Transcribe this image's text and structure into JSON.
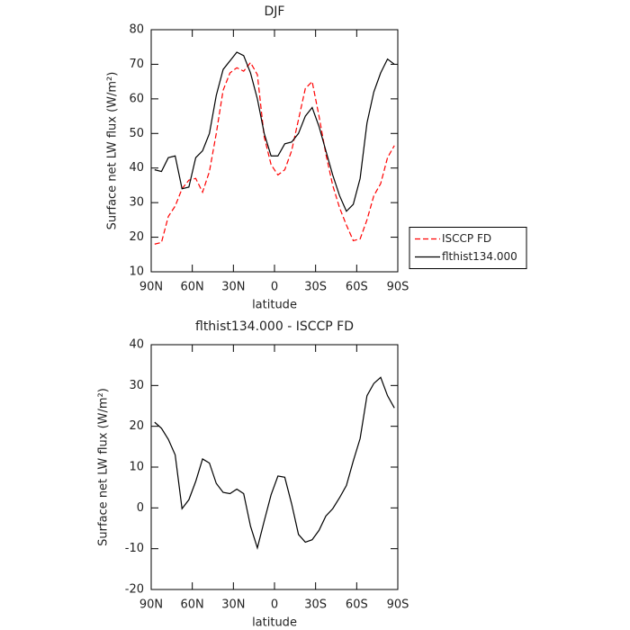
{
  "chart_data": [
    {
      "type": "line",
      "title": "DJF",
      "xlabel": "latitude",
      "ylabel": "Surface net LW flux (W/m²)",
      "x": [
        87.5,
        82.5,
        77.5,
        72.5,
        67.5,
        62.5,
        57.5,
        52.5,
        47.5,
        42.5,
        37.5,
        32.5,
        27.5,
        22.5,
        17.5,
        12.5,
        7.5,
        2.5,
        -2.5,
        -7.5,
        -12.5,
        -17.5,
        -22.5,
        -27.5,
        -32.5,
        -37.5,
        -42.5,
        -47.5,
        -52.5,
        -57.5,
        -62.5,
        -67.5,
        -72.5,
        -77.5,
        -82.5,
        -87.5
      ],
      "series": [
        {
          "name": "ISCCP FD",
          "color": "#ff0000",
          "style": "dashed",
          "values": [
            18,
            18.5,
            26,
            29,
            34,
            36.5,
            37,
            33,
            39,
            50,
            62.5,
            67.5,
            69,
            68,
            70.5,
            67,
            49,
            41,
            38,
            39.5,
            45,
            54,
            63,
            65,
            55,
            44,
            35,
            28.5,
            23.5,
            19,
            19.5,
            25,
            32,
            35.5,
            43,
            46.5
          ]
        },
        {
          "name": "flthist134.000",
          "color": "#000000",
          "style": "solid",
          "values": [
            39.5,
            39,
            43,
            43.5,
            34,
            34.5,
            43,
            45,
            50,
            61,
            68.5,
            71,
            73.5,
            72.5,
            67.5,
            60,
            50,
            43.5,
            43.5,
            47,
            47.5,
            50,
            55,
            57.5,
            52,
            45,
            38,
            32,
            27.5,
            29.5,
            37,
            53,
            62,
            67.5,
            71.5,
            70
          ]
        }
      ],
      "xlim": [
        90,
        -90
      ],
      "xticks": [
        {
          "value": 90,
          "label": "90N"
        },
        {
          "value": 60,
          "label": "60N"
        },
        {
          "value": 30,
          "label": "30N"
        },
        0,
        {
          "value": -30,
          "label": "30S"
        },
        {
          "value": -60,
          "label": "60S"
        },
        {
          "value": -90,
          "label": "90S"
        }
      ],
      "ylim": [
        10,
        80
      ],
      "yticks": [
        10,
        20,
        30,
        40,
        50,
        60,
        70,
        80
      ],
      "legend": "right"
    },
    {
      "type": "line",
      "title": "flthist134.000 - ISCCP FD",
      "xlabel": "latitude",
      "ylabel": "Surface net LW flux (W/m²)",
      "x": [
        87.5,
        82.5,
        77.5,
        72.5,
        67.5,
        62.5,
        57.5,
        52.5,
        47.5,
        42.5,
        37.5,
        32.5,
        27.5,
        22.5,
        17.5,
        12.5,
        7.5,
        2.5,
        -2.5,
        -7.5,
        -12.5,
        -17.5,
        -22.5,
        -27.5,
        -32.5,
        -37.5,
        -42.5,
        -47.5,
        -52.5,
        -57.5,
        -62.5,
        -67.5,
        -72.5,
        -77.5,
        -82.5,
        -87.5
      ],
      "series": [
        {
          "color": "#000000",
          "style": "solid",
          "values": [
            21,
            19.5,
            16.8,
            13,
            -0.2,
            2,
            6.5,
            12,
            11,
            6,
            3.8,
            3.5,
            4.6,
            3.5,
            -4.5,
            -9.8,
            -3.2,
            3.2,
            7.8,
            7.5,
            1,
            -6.5,
            -8.4,
            -7.8,
            -5.5,
            -2,
            -0.2,
            2.5,
            5.5,
            11.5,
            17,
            27.5,
            30.5,
            32,
            27.5,
            24.5
          ]
        }
      ],
      "xlim": [
        90,
        -90
      ],
      "xticks": [
        {
          "value": 90,
          "label": "90N"
        },
        {
          "value": 60,
          "label": "60N"
        },
        {
          "value": 30,
          "label": "30N"
        },
        0,
        {
          "value": -30,
          "label": "30S"
        },
        {
          "value": -60,
          "label": "60S"
        },
        {
          "value": -90,
          "label": "90S"
        }
      ],
      "ylim": [
        -20,
        40
      ],
      "yticks": [
        -20,
        -10,
        0,
        10,
        20,
        30,
        40
      ]
    }
  ]
}
